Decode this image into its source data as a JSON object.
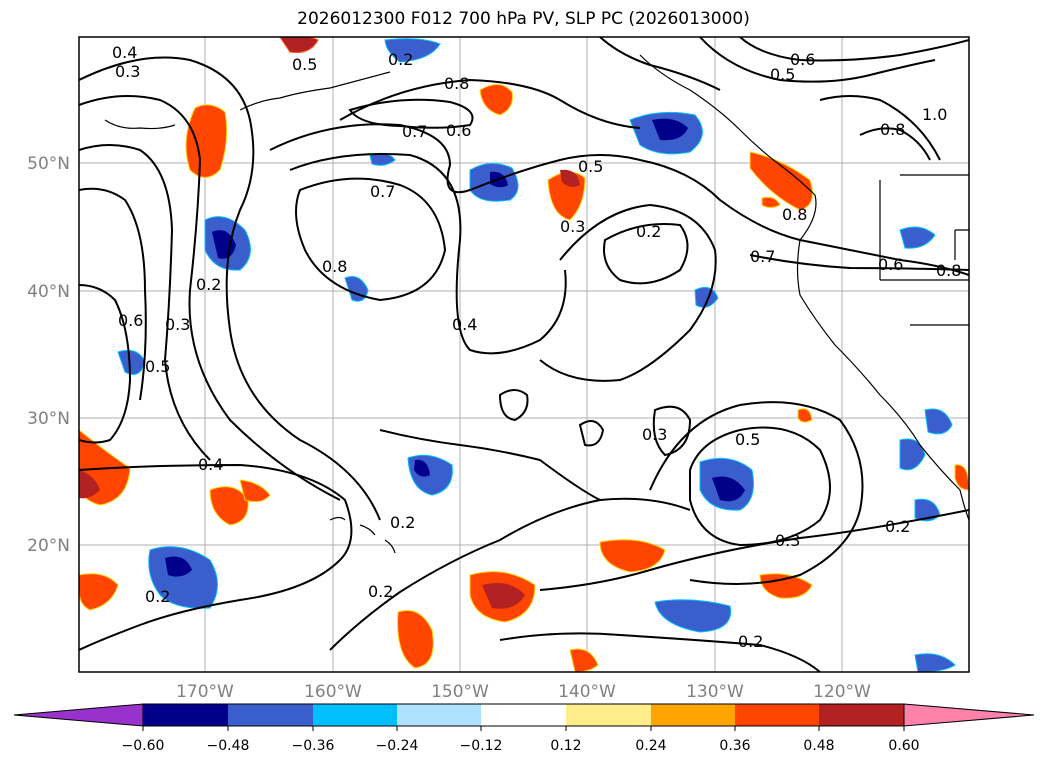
{
  "title": "2026012300 F012 700 hPa PV, SLP PC (2026013000)",
  "lat_labels": [
    "50°N",
    "40°N",
    "30°N",
    "20°N"
  ],
  "lon_labels": [
    "170°W",
    "160°W",
    "150°W",
    "140°W",
    "130°W",
    "120°W"
  ],
  "colorbar": {
    "ticks": [
      "−0.60",
      "−0.48",
      "−0.36",
      "−0.24",
      "−0.12",
      "0.12",
      "0.24",
      "0.36",
      "0.48",
      "0.60"
    ],
    "colors": [
      "#9932cc",
      "#00008b",
      "#3a5fcd",
      "#00bfff",
      "#b0e2ff",
      "#ffffff",
      "#ffec8b",
      "#ffa500",
      "#ff4500",
      "#b22222",
      "#ff82ab"
    ]
  },
  "contour_labels": [
    "0.4",
    "0.3",
    "0.5",
    "0.2",
    "0.8",
    "0.7",
    "0.6",
    "0.8",
    "0.7",
    "0.5",
    "0.3",
    "0.2",
    "0.6",
    "0.5",
    "0.8",
    "1.0",
    "0.8",
    "0.7",
    "0.6",
    "0.2",
    "0.6",
    "0.3",
    "0.5",
    "0.8",
    "0.4",
    "0.3",
    "0.5",
    "0.4",
    "0.2",
    "0.2",
    "0.2",
    "0.3",
    "0.2",
    "0.2"
  ]
}
